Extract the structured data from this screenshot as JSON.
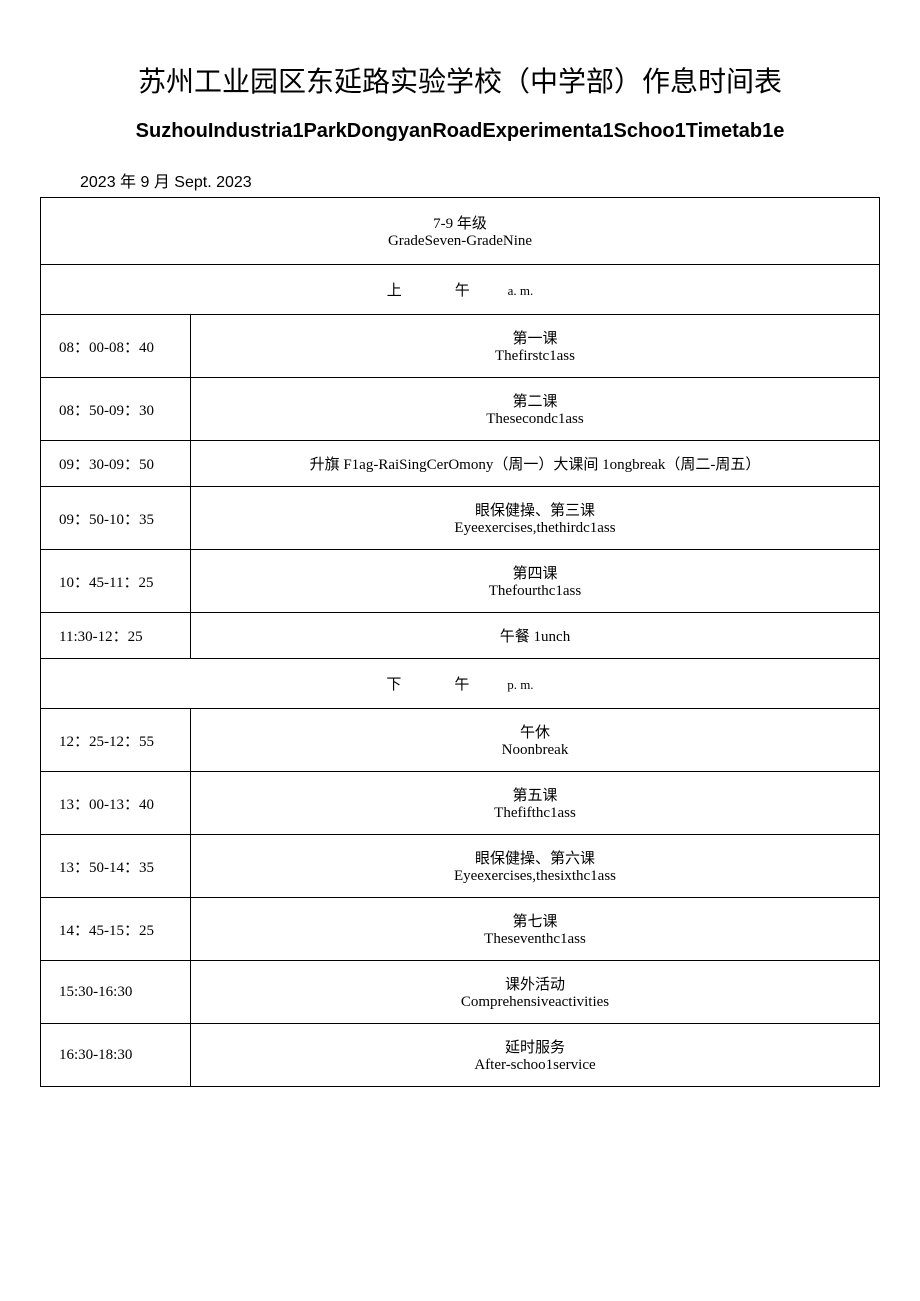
{
  "title": {
    "cn": "苏州工业园区东延路实验学校（中学部）作息时间表",
    "en": "SuzhouIndustria1ParkDongyanRoadExperimenta1Schoo1Timetab1e"
  },
  "date_label": "2023 年 9 月 Sept. 2023",
  "header": {
    "cn": "7-9 年级",
    "en": "GradeSeven-GradeNine"
  },
  "morning": {
    "label": "上　　　午",
    "sub": "a. m."
  },
  "afternoon": {
    "label": "下　　　午",
    "sub": "p. m."
  },
  "rows": [
    {
      "time": "08：00-08：40",
      "cn": "第一课",
      "en": "Thefirstc1ass"
    },
    {
      "time": "08：50-09：30",
      "cn": "第二课",
      "en": "Thesecondc1ass"
    },
    {
      "time": "09：30-09：50",
      "single": "升旗 F1ag-RaiSingCerOmony（周一）大课间 1ongbreak（周二-周五）"
    },
    {
      "time": "09：50-10：35",
      "cn": "眼保健操、第三课",
      "en": "Eyeexercises,thethirdc1ass"
    },
    {
      "time": "10：45-11：25",
      "cn": "第四课",
      "en": "Thefourthc1ass"
    },
    {
      "time": "11:30-12：25",
      "single": "午餐 1unch"
    }
  ],
  "rows_pm": [
    {
      "time": "12：25-12：55",
      "cn": "午休",
      "en": "Noonbreak"
    },
    {
      "time": "13：00-13：40",
      "cn": "第五课",
      "en": "Thefifthc1ass"
    },
    {
      "time": "13：50-14：35",
      "cn": "眼保健操、第六课",
      "en": "Eyeexercises,thesixthc1ass"
    },
    {
      "time": "14：45-15：25",
      "cn": "第七课",
      "en": "Theseventhc1ass"
    },
    {
      "time": "15:30-16:30",
      "cn": "课外活动",
      "en": "Comprehensiveactivities"
    },
    {
      "time": "16:30-18:30",
      "cn": "延时服务",
      "en": "After-schoo1service"
    }
  ],
  "colors": {
    "background": "#ffffff",
    "border": "#000000",
    "text": "#000000"
  }
}
